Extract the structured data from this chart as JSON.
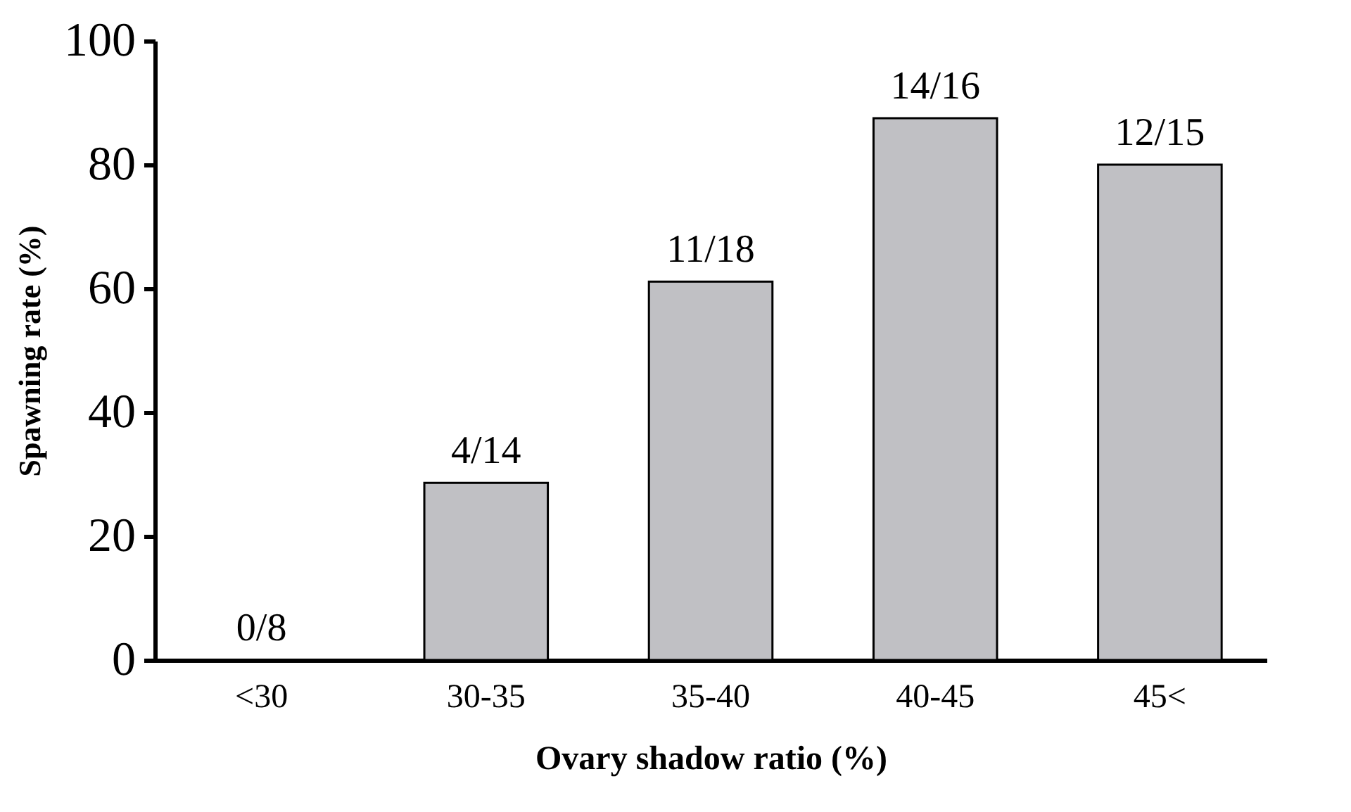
{
  "chart_data": {
    "type": "bar",
    "xlabel": "Ovary shadow ratio (%)",
    "ylabel": "Spawning rate (%)",
    "categories": [
      "<30",
      "30-35",
      "35-40",
      "40-45",
      "45<"
    ],
    "values": [
      0,
      28.6,
      61.1,
      87.5,
      80
    ],
    "annotations": [
      {
        "text": "0/8",
        "x": "<30",
        "y": 0
      },
      {
        "text": "4/14",
        "x": "30-35",
        "y": 28.6
      },
      {
        "text": "11/18",
        "x": "35-40",
        "y": 61.1
      },
      {
        "text": "14/16",
        "x": "40-45",
        "y": 87.5
      },
      {
        "text": "12/15",
        "x": "45<",
        "y": 80
      }
    ],
    "color": "#c0c0c4",
    "ylim": [
      0,
      100
    ],
    "yticks": [
      0,
      20,
      40,
      60,
      80,
      100
    ],
    "grid": false
  }
}
